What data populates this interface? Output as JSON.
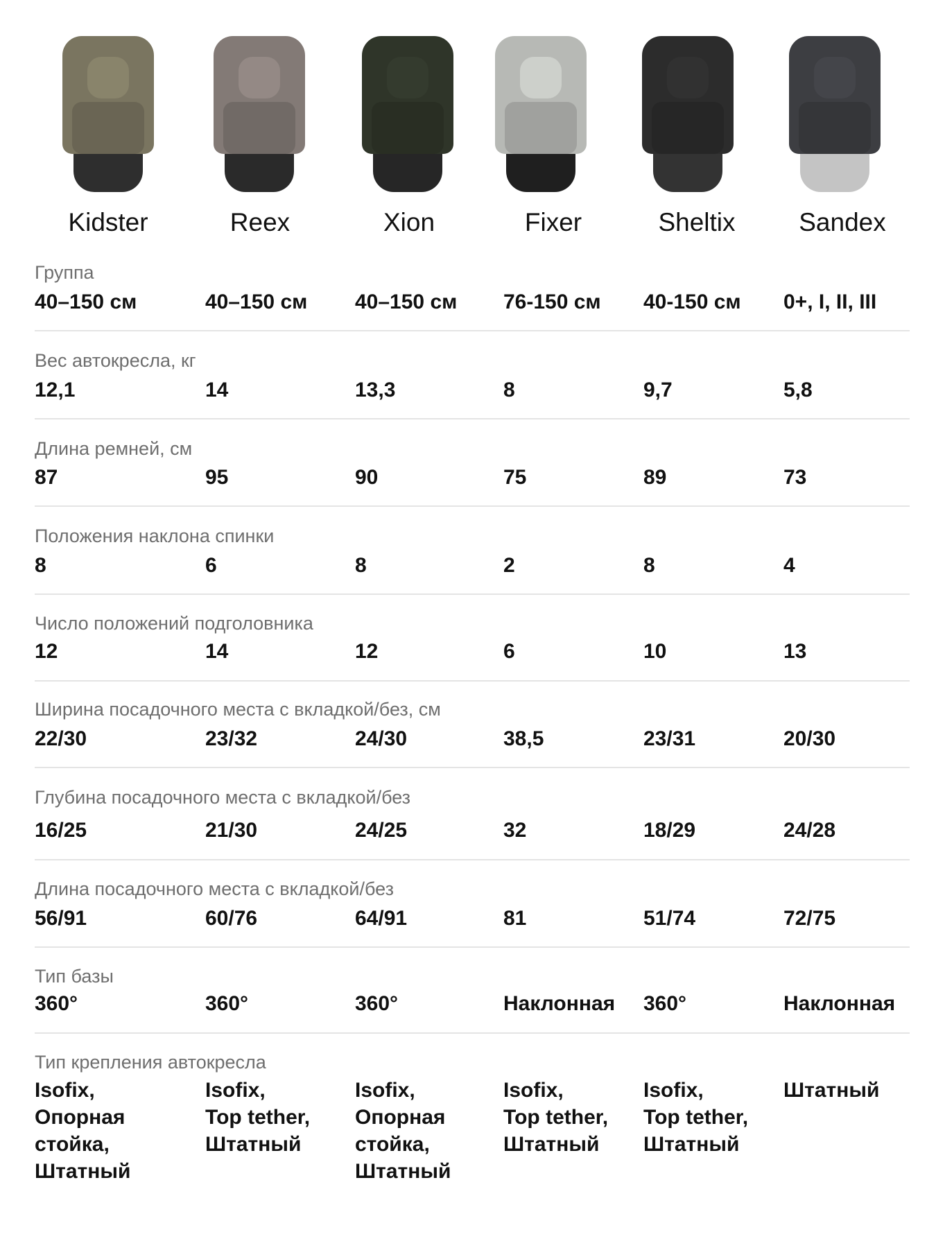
{
  "products": [
    {
      "name": "Kidster",
      "color": "#7a7560",
      "base_color": "#2e2e2e"
    },
    {
      "name": "Reex",
      "color": "#837a76",
      "base_color": "#2a2a2a"
    },
    {
      "name": "Xion",
      "color": "#2f3529",
      "base_color": "#262626"
    },
    {
      "name": "Fixer",
      "color": "#b7b9b5",
      "base_color": "#1f1f1f"
    },
    {
      "name": "Sheltix",
      "color": "#2c2c2c",
      "base_color": "#333333"
    },
    {
      "name": "Sandex",
      "color": "#3d3e42",
      "base_color": "#c4c4c4"
    }
  ],
  "rows": [
    {
      "label": "Группа",
      "values": [
        "40–150 см",
        "40–150 см",
        "40–150 см",
        "76-150 см",
        "40-150 см",
        "0+, I, II, III"
      ]
    },
    {
      "label": "Вес автокресла, кг",
      "values": [
        "12,1",
        "14",
        "13,3",
        "8",
        "9,7",
        "5,8"
      ]
    },
    {
      "label": "Длина ремней, см",
      "values": [
        "87",
        "95",
        "90",
        "75",
        "89",
        "73"
      ]
    },
    {
      "label": "Положения наклона спинки",
      "values": [
        "8",
        "6",
        "8",
        "2",
        "8",
        "4"
      ]
    },
    {
      "label": "Число положений подголовника",
      "values": [
        "12",
        "14",
        "12",
        "6",
        "10",
        "13"
      ]
    },
    {
      "label": "Ширина посадочного места с вкладкой/без, см",
      "values": [
        "22/30",
        "23/32",
        "24/30",
        "38,5",
        "23/31",
        "20/30"
      ]
    },
    {
      "label": "Глубина посадочного места с вкладкой/без",
      "values": [
        "16/25",
        "21/30",
        "24/25",
        "32",
        "18/29",
        "24/28"
      ]
    },
    {
      "label": "Длина посадочного места с вкладкой/без",
      "values": [
        "56/91",
        "60/76",
        "64/91",
        "81",
        "51/74",
        "72/75"
      ]
    },
    {
      "label": "Тип базы",
      "values": [
        "360°",
        "360°",
        "360°",
        "Наклонная",
        "360°",
        "Наклонная"
      ]
    },
    {
      "label": "Тип крепления автокресла",
      "values": [
        "Isofix,\nОпорная\nстойка,\nШтатный",
        "Isofix,\nTop tether,\nШтатный",
        "Isofix,\nОпорная\nстойка,\nШтатный",
        "Isofix,\nTop tether,\nШтатный",
        "Isofix,\nTop tether,\nШтатный",
        "Штатный"
      ]
    }
  ]
}
